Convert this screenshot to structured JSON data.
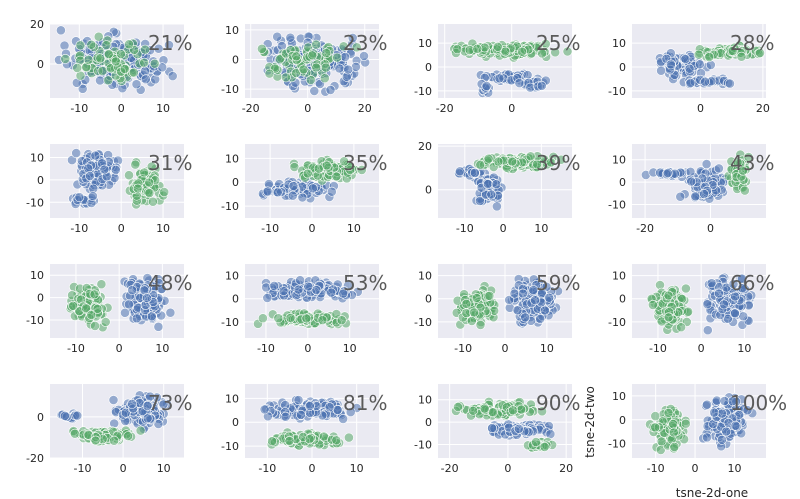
{
  "colors": {
    "blue": "#4c72b0",
    "green": "#55a868",
    "axes_bg": "#eaeaf2",
    "grid": "#ffffff"
  },
  "axis_labels": {
    "x": "tsne-2d-one",
    "y": "tsne-2d-two"
  },
  "chart_data": [
    {
      "type": "scatter",
      "annotation": "21%",
      "xticks": [
        -10,
        0,
        10
      ],
      "yticks": [
        0,
        20
      ],
      "xlim": [
        -17,
        15
      ],
      "ylim": [
        -17,
        20
      ],
      "shape": "blob",
      "series": [
        {
          "name": "",
          "color": "#4c72b0"
        },
        {
          "name": "",
          "color": "#55a868"
        }
      ]
    },
    {
      "type": "scatter",
      "annotation": "23%",
      "xticks": [
        -20,
        0,
        20
      ],
      "yticks": [
        -10,
        0,
        10
      ],
      "xlim": [
        -22,
        25
      ],
      "ylim": [
        -13,
        12
      ],
      "shape": "blob",
      "series": [
        {
          "name": "",
          "color": "#4c72b0"
        },
        {
          "name": "",
          "color": "#55a868"
        }
      ]
    },
    {
      "type": "scatter",
      "annotation": "25%",
      "xticks": [
        -20,
        0
      ],
      "yticks": [
        -10,
        0,
        10
      ],
      "xlim": [
        -22,
        18
      ],
      "ylim": [
        -13,
        18
      ],
      "shape": "snake",
      "series": [
        {
          "name": "",
          "color": "#4c72b0"
        },
        {
          "name": "",
          "color": "#55a868"
        }
      ]
    },
    {
      "type": "scatter",
      "annotation": "28%",
      "xticks": [
        0,
        20
      ],
      "yticks": [
        -10,
        0,
        10
      ],
      "xlim": [
        -22,
        21
      ],
      "ylim": [
        -13,
        18
      ],
      "shape": "arc",
      "series": [
        {
          "name": "",
          "color": "#4c72b0"
        },
        {
          "name": "",
          "color": "#55a868"
        }
      ]
    },
    {
      "type": "scatter",
      "annotation": "31%",
      "xticks": [
        -10,
        0,
        10
      ],
      "yticks": [
        -10,
        0,
        10
      ],
      "xlim": [
        -17,
        15
      ],
      "ylim": [
        -17,
        16
      ],
      "shape": "swirl",
      "series": [
        {
          "name": "",
          "color": "#4c72b0"
        },
        {
          "name": "",
          "color": "#55a868"
        }
      ]
    },
    {
      "type": "scatter",
      "annotation": "35%",
      "xticks": [
        -10,
        0,
        10
      ],
      "yticks": [
        -10,
        0,
        10
      ],
      "xlim": [
        -16,
        16
      ],
      "ylim": [
        -15,
        16
      ],
      "shape": "bands",
      "series": [
        {
          "name": "",
          "color": "#4c72b0"
        },
        {
          "name": "",
          "color": "#55a868"
        }
      ]
    },
    {
      "type": "scatter",
      "annotation": "39%",
      "xticks": [
        -10,
        0,
        10
      ],
      "yticks": [
        0,
        20
      ],
      "xlim": [
        -17,
        18
      ],
      "ylim": [
        -13,
        21
      ],
      "shape": "hook",
      "series": [
        {
          "name": "",
          "color": "#4c72b0"
        },
        {
          "name": "",
          "color": "#55a868"
        }
      ]
    },
    {
      "type": "scatter",
      "annotation": "43%",
      "xticks": [
        -20,
        0
      ],
      "yticks": [
        -10,
        0,
        10
      ],
      "xlim": [
        -24,
        17
      ],
      "ylim": [
        -16,
        17
      ],
      "shape": "tail",
      "series": [
        {
          "name": "",
          "color": "#4c72b0"
        },
        {
          "name": "",
          "color": "#55a868"
        }
      ]
    },
    {
      "type": "scatter",
      "annotation": "48%",
      "xticks": [
        -10,
        0,
        10
      ],
      "yticks": [
        -10,
        0,
        10
      ],
      "xlim": [
        -16,
        15
      ],
      "ylim": [
        -18,
        15
      ],
      "shape": "pair",
      "series": [
        {
          "name": "",
          "color": "#4c72b0"
        },
        {
          "name": "",
          "color": "#55a868"
        }
      ]
    },
    {
      "type": "scatter",
      "annotation": "53%",
      "xticks": [
        -10,
        0,
        10
      ],
      "yticks": [
        -10,
        0,
        10
      ],
      "xlim": [
        -15,
        17
      ],
      "ylim": [
        -17,
        15
      ],
      "shape": "layers",
      "series": [
        {
          "name": "",
          "color": "#4c72b0"
        },
        {
          "name": "",
          "color": "#55a868"
        }
      ]
    },
    {
      "type": "scatter",
      "annotation": "59%",
      "xticks": [
        -10,
        0,
        10
      ],
      "yticks": [
        -10,
        0,
        10
      ],
      "xlim": [
        -16,
        16
      ],
      "ylim": [
        -17,
        15
      ],
      "shape": "pair",
      "series": [
        {
          "name": "",
          "color": "#4c72b0"
        },
        {
          "name": "",
          "color": "#55a868"
        }
      ]
    },
    {
      "type": "scatter",
      "annotation": "66%",
      "xticks": [
        -10,
        0,
        10
      ],
      "yticks": [
        -10,
        0,
        10
      ],
      "xlim": [
        -16,
        15
      ],
      "ylim": [
        -17,
        15
      ],
      "shape": "pair",
      "series": [
        {
          "name": "",
          "color": "#4c72b0"
        },
        {
          "name": "",
          "color": "#55a868"
        }
      ]
    },
    {
      "type": "scatter",
      "annotation": "73%",
      "xticks": [
        -10,
        0,
        10
      ],
      "yticks": [
        -20,
        0
      ],
      "xlim": [
        -18,
        15
      ],
      "ylim": [
        -20,
        16
      ],
      "shape": "diag",
      "series": [
        {
          "name": "",
          "color": "#4c72b0"
        },
        {
          "name": "",
          "color": "#55a868"
        }
      ]
    },
    {
      "type": "scatter",
      "annotation": "81%",
      "xticks": [
        -10,
        0,
        10
      ],
      "yticks": [
        -10,
        0,
        10
      ],
      "xlim": [
        -15,
        15
      ],
      "ylim": [
        -15,
        16
      ],
      "shape": "layers",
      "series": [
        {
          "name": "",
          "color": "#4c72b0"
        },
        {
          "name": "",
          "color": "#55a868"
        }
      ]
    },
    {
      "type": "scatter",
      "annotation": "90%",
      "xticks": [
        -20,
        0,
        20
      ],
      "yticks": [
        -10,
        0,
        10
      ],
      "xlim": [
        -24,
        22
      ],
      "ylim": [
        -16,
        17
      ],
      "shape": "spiral",
      "series": [
        {
          "name": "",
          "color": "#4c72b0"
        },
        {
          "name": "",
          "color": "#55a868"
        }
      ]
    },
    {
      "type": "scatter",
      "annotation": "100%",
      "xticks": [
        -10,
        0,
        10
      ],
      "yticks": [
        -10,
        0,
        10
      ],
      "xlim": [
        -16,
        18
      ],
      "ylim": [
        -16,
        15
      ],
      "shape": "pair",
      "series": [
        {
          "name": "",
          "color": "#4c72b0"
        },
        {
          "name": "",
          "color": "#55a868"
        }
      ]
    }
  ]
}
